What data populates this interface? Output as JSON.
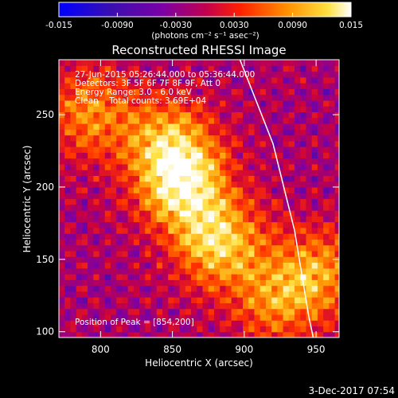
{
  "chart_data": {
    "type": "heatmap",
    "title": "Reconstructed RHESSI Image",
    "xlabel": "Heliocentric X (arcsec)",
    "ylabel": "Heliocentric Y (arcsec)",
    "xlim": [
      771,
      966
    ],
    "ylim": [
      96,
      288
    ],
    "x_ticks": [
      "800",
      "850",
      "900",
      "950"
    ],
    "y_ticks": [
      "100",
      "150",
      "200",
      "250"
    ],
    "colorbar": {
      "range": [
        -0.015,
        0.015
      ],
      "tick_labels": [
        "-0.015",
        "-0.0090",
        "-0.0030",
        "0.0030",
        "0.0090",
        "0.015"
      ],
      "unit_label": "(photons cm⁻² s⁻¹ asec⁻²)",
      "colors": [
        "#0000ff",
        "#3a0fb0",
        "#8000a0",
        "#c80040",
        "#ff3000",
        "#ff9000",
        "#ffe040",
        "#ffffff"
      ]
    },
    "annotations": [
      "27-Jun-2015 05:26:44.000 to 05:36:44.000",
      "Detectors: 3F 5F 6F 7F 8F 9F, Att 0",
      "Energy Range: 3.0 - 6.0 keV",
      "Clean    Total counts: 3.69E+04"
    ],
    "peak_label": "Position of Peak = [854,200]",
    "bright_regions": [
      {
        "x": 855,
        "y": 200,
        "intensity": 0.015
      },
      {
        "x": 880,
        "y": 160,
        "intensity": 0.014
      },
      {
        "x": 790,
        "y": 250,
        "intensity": 0.01
      },
      {
        "x": 845,
        "y": 230,
        "intensity": 0.011
      },
      {
        "x": 950,
        "y": 140,
        "intensity": 0.01
      },
      {
        "x": 920,
        "y": 120,
        "intensity": 0.009
      }
    ],
    "limb_curve": [
      [
        897,
        288
      ],
      [
        920,
        230
      ],
      [
        935,
        170
      ],
      [
        945,
        110
      ],
      [
        948,
        96
      ]
    ]
  },
  "footer_date": "3-Dec-2017 07:54"
}
